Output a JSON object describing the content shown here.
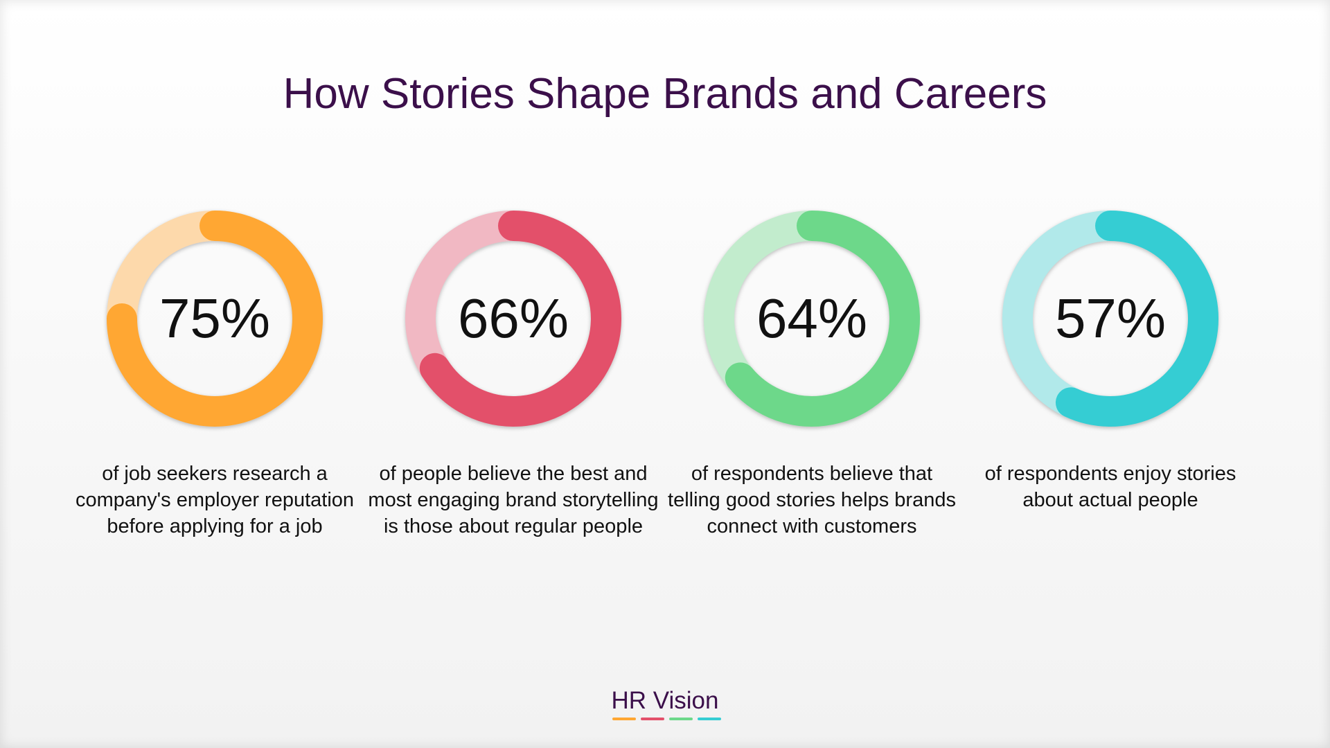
{
  "title": "How Stories Shape Brands and Careers",
  "chart_data": {
    "type": "donut",
    "title": "How Stories Shape Brands and Careers",
    "items": [
      {
        "value": 75,
        "label": "75%",
        "description": "of job seekers research a company's employer reputation before applying for a job",
        "color": "#ffa733",
        "track_color": "#fdd9ab"
      },
      {
        "value": 66,
        "label": "66%",
        "description": "of people believe the best and most engaging brand storytelling is those about regular people",
        "color": "#e3506a",
        "track_color": "#f1b8c3"
      },
      {
        "value": 64,
        "label": "64%",
        "description": "of respondents believe that telling good stories helps brands connect with customers",
        "color": "#6dd88a",
        "track_color": "#c2eccd"
      },
      {
        "value": 57,
        "label": "57%",
        "description": "of respondents enjoy stories about actual people",
        "color": "#35cdd3",
        "track_color": "#b1e9ea"
      }
    ]
  },
  "brand": {
    "name": "HR Vision",
    "bar_colors": [
      "#ffa733",
      "#e3506a",
      "#6dd88a",
      "#35cdd3"
    ]
  }
}
